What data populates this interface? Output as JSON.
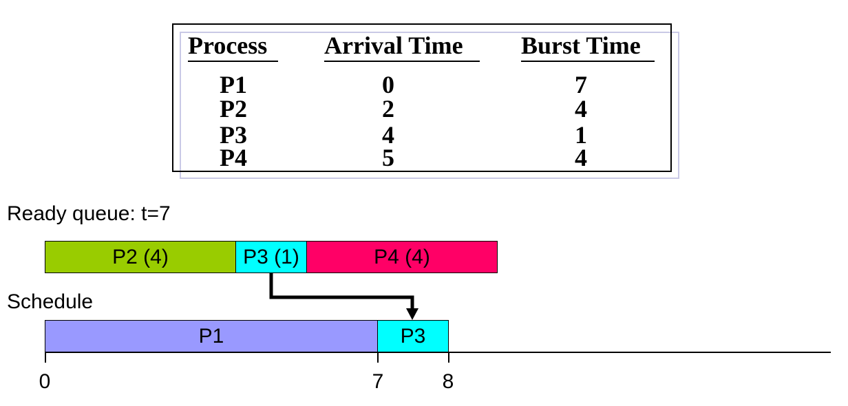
{
  "table": {
    "headers": [
      "Process",
      "Arrival Time",
      "Burst Time"
    ],
    "rows": [
      [
        "P1",
        "0",
        "7"
      ],
      [
        "P2",
        "2",
        "4"
      ],
      [
        "P3",
        "4",
        "1"
      ],
      [
        "P4",
        "5",
        "4"
      ]
    ]
  },
  "ready_queue": {
    "title": "Ready queue: t=7",
    "items": [
      {
        "label": "P2 (4)",
        "color": "#99cc00"
      },
      {
        "label": "P3 (1)",
        "color": "#00ffff"
      },
      {
        "label": "P4 (4)",
        "color": "#ff0066"
      }
    ]
  },
  "schedule": {
    "title": "Schedule",
    "items": [
      {
        "label": "P1",
        "color": "#9999ff"
      },
      {
        "label": "P3",
        "color": "#00ffff"
      }
    ],
    "ticks": [
      "0",
      "7",
      "8"
    ]
  }
}
